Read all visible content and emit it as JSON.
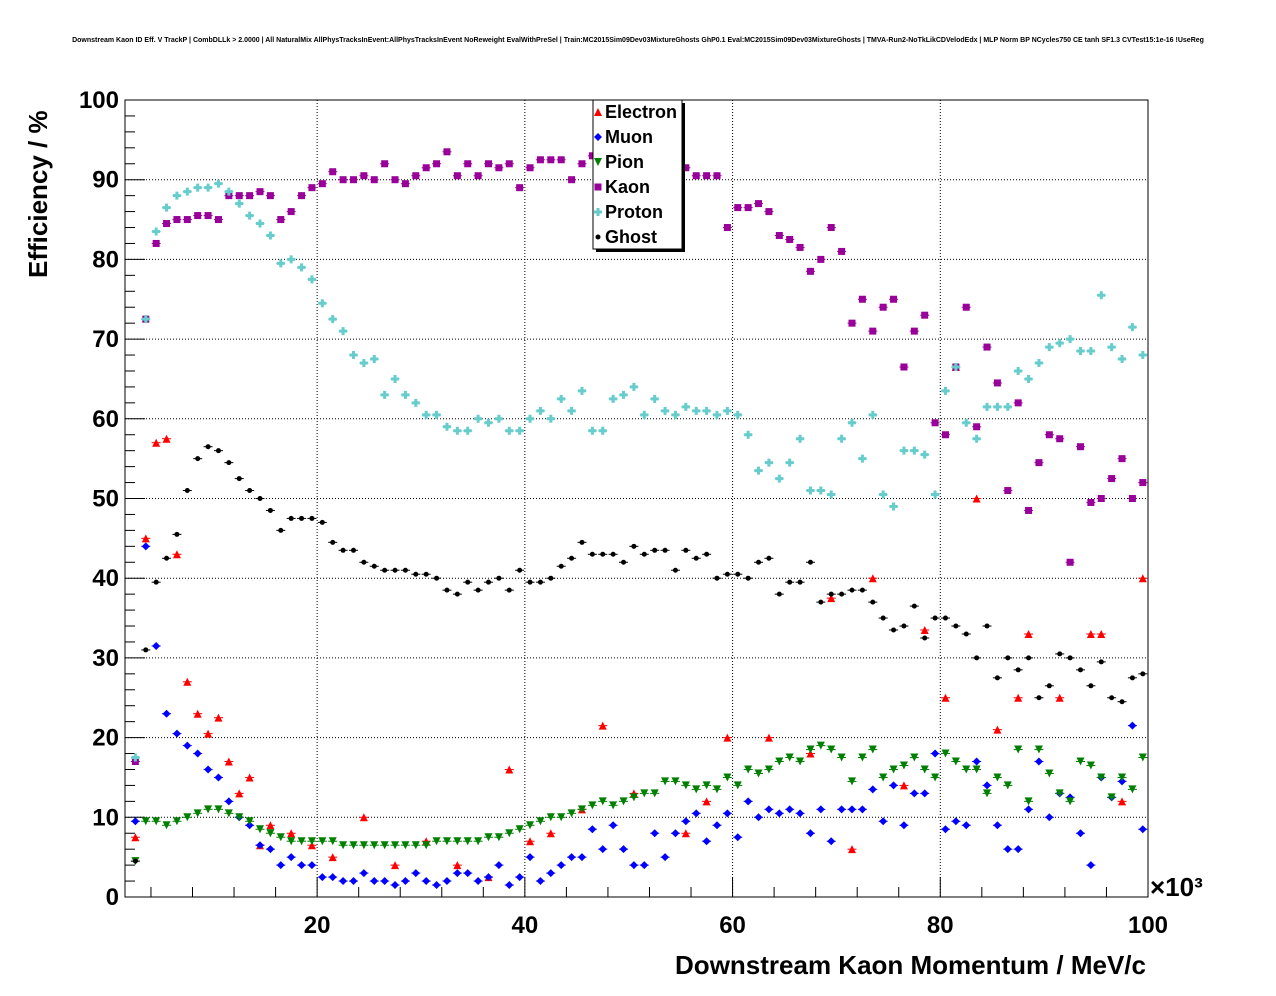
{
  "chart_data": {
    "type": "scatter",
    "title": "Downstream Kaon ID Eff. V TrackP | CombDLLk > 2.0000 | All NaturalMix AllPhysTracksInEvent:AllPhysTracksInEvent NoReweight EvalWithPreSel | Train:MC2015Sim09Dev03MixtureGhosts GhP0.1 Eval:MC2015Sim09Dev03MixtureGhosts | TMVA-Run2-NoTkLikCDVelodEdx | MLP Norm BP NCycles750 CE tanh SF1.3 CVTest15:1e-16 !UseReg",
    "xlabel": "Downstream Kaon Momentum / MeV/c",
    "ylabel": "Efficiency / %",
    "x_multiplier": "×10³",
    "xlim": [
      1.5,
      100
    ],
    "ylim": [
      0,
      100
    ],
    "xticks": [
      20,
      40,
      60,
      80,
      100
    ],
    "yticks": [
      0,
      10,
      20,
      30,
      40,
      50,
      60,
      70,
      80,
      90,
      100
    ],
    "grid": true,
    "legend_position": "top-center",
    "series": [
      {
        "name": "Electron",
        "color": "#ff0000",
        "marker": "triangle-up",
        "x": [
          2.5,
          3.5,
          4.5,
          5.5,
          6.5,
          7.5,
          8.5,
          9.5,
          10.5,
          11.5,
          12.5,
          13.5,
          14.5,
          15.5,
          17.5,
          19.5,
          21.5,
          24.5,
          27.5,
          30.5,
          33.5,
          36.5,
          38.5,
          40.5,
          42.5,
          45.5,
          47.5,
          50.5,
          55.5,
          57.5,
          59.5,
          63.5,
          67.5,
          69.5,
          71.5,
          73.5,
          76.5,
          78.5,
          80.5,
          81.5,
          83.5,
          85.5,
          87.5,
          88.5,
          91.5,
          94.5,
          95.5,
          97.5,
          99.5
        ],
        "y": [
          7.5,
          45,
          57,
          57.5,
          43,
          27,
          23,
          20.5,
          22.5,
          17,
          13,
          15,
          6.5,
          9,
          8,
          6.5,
          5,
          10,
          4,
          7,
          4,
          2.5,
          16,
          7,
          8,
          11,
          21.5,
          13,
          8,
          12,
          20,
          20,
          18,
          37.5,
          6,
          40,
          14,
          33.5,
          25,
          66.5,
          50,
          21,
          25,
          33,
          25,
          33,
          33,
          12,
          40
        ]
      },
      {
        "name": "Muon",
        "color": "#0000ff",
        "marker": "diamond",
        "x": [
          2.5,
          3.5,
          4.5,
          5.5,
          6.5,
          7.5,
          8.5,
          9.5,
          10.5,
          11.5,
          12.5,
          13.5,
          14.5,
          15.5,
          16.5,
          17.5,
          18.5,
          19.5,
          20.5,
          21.5,
          22.5,
          23.5,
          24.5,
          25.5,
          26.5,
          27.5,
          28.5,
          29.5,
          30.5,
          31.5,
          32.5,
          33.5,
          34.5,
          35.5,
          36.5,
          37.5,
          38.5,
          39.5,
          40.5,
          41.5,
          42.5,
          43.5,
          44.5,
          45.5,
          46.5,
          47.5,
          48.5,
          49.5,
          50.5,
          51.5,
          52.5,
          53.5,
          54.5,
          55.5,
          56.5,
          57.5,
          58.5,
          59.5,
          60.5,
          61.5,
          62.5,
          63.5,
          64.5,
          65.5,
          66.5,
          67.5,
          68.5,
          69.5,
          70.5,
          71.5,
          72.5,
          73.5,
          74.5,
          75.5,
          76.5,
          77.5,
          78.5,
          79.5,
          80.5,
          81.5,
          82.5,
          83.5,
          84.5,
          85.5,
          86.5,
          87.5,
          88.5,
          89.5,
          90.5,
          91.5,
          92.5,
          93.5,
          94.5,
          95.5,
          96.5,
          97.5,
          98.5,
          99.5
        ],
        "y": [
          9.5,
          44,
          31.5,
          23,
          20.5,
          19,
          18,
          16,
          15,
          12,
          10,
          9,
          6.5,
          6,
          4,
          5,
          4,
          4,
          2.5,
          2.5,
          2,
          2,
          3,
          2,
          2,
          1.5,
          2,
          3,
          2,
          1.5,
          2,
          3,
          3,
          2,
          2.5,
          4,
          1.5,
          2.5,
          5,
          2,
          3,
          4,
          5,
          5,
          8.5,
          6,
          9,
          6,
          4,
          4,
          8,
          5,
          8,
          9.5,
          10.5,
          7,
          9,
          10.5,
          7.5,
          12,
          10,
          11,
          10.5,
          11,
          10.5,
          8,
          11,
          7,
          11,
          11,
          11,
          13.5,
          9.5,
          14,
          9,
          13,
          13,
          18,
          8.5,
          9.5,
          9,
          17,
          14,
          9,
          6,
          6,
          11,
          17,
          10,
          13,
          12.5,
          8,
          4,
          15,
          12.5,
          14.5,
          21.5,
          8.5
        ]
      },
      {
        "name": "Pion",
        "color": "#008000",
        "marker": "triangle-down",
        "x": [
          2.5,
          3.5,
          4.5,
          5.5,
          6.5,
          7.5,
          8.5,
          9.5,
          10.5,
          11.5,
          12.5,
          13.5,
          14.5,
          15.5,
          16.5,
          17.5,
          18.5,
          19.5,
          20.5,
          21.5,
          22.5,
          23.5,
          24.5,
          25.5,
          26.5,
          27.5,
          28.5,
          29.5,
          30.5,
          31.5,
          32.5,
          33.5,
          34.5,
          35.5,
          36.5,
          37.5,
          38.5,
          39.5,
          40.5,
          41.5,
          42.5,
          43.5,
          44.5,
          45.5,
          46.5,
          47.5,
          48.5,
          49.5,
          50.5,
          51.5,
          52.5,
          53.5,
          54.5,
          55.5,
          56.5,
          57.5,
          58.5,
          59.5,
          60.5,
          61.5,
          62.5,
          63.5,
          64.5,
          65.5,
          66.5,
          67.5,
          68.5,
          69.5,
          70.5,
          71.5,
          72.5,
          73.5,
          74.5,
          75.5,
          76.5,
          77.5,
          78.5,
          79.5,
          80.5,
          81.5,
          82.5,
          83.5,
          84.5,
          85.5,
          86.5,
          87.5,
          88.5,
          89.5,
          90.5,
          91.5,
          92.5,
          93.5,
          94.5,
          95.5,
          96.5,
          97.5,
          98.5,
          99.5
        ],
        "y": [
          4.5,
          9.5,
          9.5,
          9,
          9.5,
          10,
          10.5,
          11,
          11,
          10.5,
          10,
          9.5,
          8.5,
          8,
          7.5,
          7,
          7,
          7,
          7,
          7,
          6.5,
          6.5,
          6.5,
          6.5,
          6.5,
          6.5,
          6.5,
          6.5,
          6.5,
          7,
          7,
          7,
          7,
          7,
          7.5,
          7.5,
          8,
          8.5,
          9,
          9.5,
          10,
          10,
          10.5,
          11,
          11.5,
          12,
          11.5,
          12,
          12.5,
          13,
          13,
          14.5,
          14.5,
          14,
          13.5,
          14,
          13.5,
          15,
          14,
          16,
          15.5,
          16,
          17,
          17.5,
          17,
          18.5,
          19,
          18.5,
          17.5,
          14.5,
          17.5,
          18.5,
          15,
          16,
          16.5,
          17.5,
          16,
          15,
          18,
          17,
          16,
          16,
          13,
          15,
          14,
          18.5,
          12,
          18.5,
          15.5,
          13,
          12,
          17,
          16.5,
          15,
          12.5,
          15,
          13.5,
          17.5
        ]
      },
      {
        "name": "Kaon",
        "color": "#990099",
        "marker": "square",
        "x": [
          2.5,
          3.5,
          4.5,
          5.5,
          6.5,
          7.5,
          8.5,
          9.5,
          10.5,
          11.5,
          12.5,
          13.5,
          14.5,
          15.5,
          16.5,
          17.5,
          18.5,
          19.5,
          20.5,
          21.5,
          22.5,
          23.5,
          24.5,
          25.5,
          26.5,
          27.5,
          28.5,
          29.5,
          30.5,
          31.5,
          32.5,
          33.5,
          34.5,
          35.5,
          36.5,
          37.5,
          38.5,
          39.5,
          40.5,
          41.5,
          42.5,
          43.5,
          44.5,
          45.5,
          46.5,
          47.5,
          48.5,
          49.5,
          50.5,
          51.5,
          52.5,
          53.5,
          54.5,
          55.5,
          56.5,
          57.5,
          58.5,
          59.5,
          60.5,
          61.5,
          62.5,
          63.5,
          64.5,
          65.5,
          66.5,
          67.5,
          68.5,
          69.5,
          70.5,
          71.5,
          72.5,
          73.5,
          74.5,
          75.5,
          76.5,
          77.5,
          78.5,
          79.5,
          80.5,
          81.5,
          82.5,
          83.5,
          84.5,
          85.5,
          86.5,
          87.5,
          88.5,
          89.5,
          90.5,
          91.5,
          92.5,
          93.5,
          94.5,
          95.5,
          96.5,
          97.5,
          98.5,
          99.5
        ],
        "y": [
          17,
          72.5,
          82,
          84.5,
          85,
          85,
          85.5,
          85.5,
          85,
          88,
          88,
          88,
          88.5,
          88,
          85,
          86,
          88,
          89,
          89.5,
          91,
          90,
          90,
          90.5,
          90,
          92,
          90,
          89.5,
          90.5,
          91.5,
          92,
          93.5,
          90.5,
          92,
          90.5,
          92,
          91.5,
          92,
          89,
          91.5,
          92.5,
          92.5,
          92.5,
          90,
          92,
          93,
          91.5,
          91.5,
          92,
          90.5,
          91,
          89.5,
          91,
          89.5,
          91.5,
          90.5,
          90.5,
          90.5,
          84,
          86.5,
          86.5,
          87,
          86,
          83,
          82.5,
          81.5,
          78.5,
          80,
          84,
          81,
          72,
          75,
          71,
          74,
          75,
          66.5,
          71,
          73,
          59.5,
          58,
          66.5,
          74,
          59,
          69,
          64.5,
          51,
          62,
          48.5,
          54.5,
          58,
          57.5,
          42,
          56.5,
          49.5,
          50,
          52.5,
          55,
          50,
          52
        ]
      },
      {
        "name": "Proton",
        "color": "#66cccc",
        "marker": "cross",
        "x": [
          2.5,
          3.5,
          4.5,
          5.5,
          6.5,
          7.5,
          8.5,
          9.5,
          10.5,
          11.5,
          12.5,
          13.5,
          14.5,
          15.5,
          16.5,
          17.5,
          18.5,
          19.5,
          20.5,
          21.5,
          22.5,
          23.5,
          24.5,
          25.5,
          26.5,
          27.5,
          28.5,
          29.5,
          30.5,
          31.5,
          32.5,
          33.5,
          34.5,
          35.5,
          36.5,
          37.5,
          38.5,
          39.5,
          40.5,
          41.5,
          42.5,
          43.5,
          44.5,
          45.5,
          46.5,
          47.5,
          48.5,
          49.5,
          50.5,
          51.5,
          52.5,
          53.5,
          54.5,
          55.5,
          56.5,
          57.5,
          58.5,
          59.5,
          60.5,
          61.5,
          62.5,
          63.5,
          64.5,
          65.5,
          66.5,
          67.5,
          68.5,
          69.5,
          70.5,
          71.5,
          72.5,
          73.5,
          74.5,
          75.5,
          76.5,
          77.5,
          78.5,
          79.5,
          80.5,
          81.5,
          82.5,
          83.5,
          84.5,
          85.5,
          86.5,
          87.5,
          88.5,
          89.5,
          90.5,
          91.5,
          92.5,
          93.5,
          94.5,
          95.5,
          96.5,
          97.5,
          98.5,
          99.5
        ],
        "y": [
          17.5,
          72.5,
          83.5,
          86.5,
          88,
          88.5,
          89,
          89,
          89.5,
          88.5,
          87,
          85.5,
          84.5,
          83,
          79.5,
          80,
          79,
          77.5,
          74.5,
          72.5,
          71,
          68,
          67,
          67.5,
          63,
          65,
          63,
          62,
          60.5,
          60.5,
          59,
          58.5,
          58.5,
          60,
          59.5,
          60,
          58.5,
          58.5,
          60,
          61,
          60,
          62.5,
          61,
          63.5,
          58.5,
          58.5,
          62.5,
          63,
          64,
          60.5,
          62.5,
          61,
          60.5,
          61.5,
          61,
          61,
          60.5,
          61,
          60.5,
          58,
          53.5,
          54.5,
          52.5,
          54.5,
          57.5,
          51,
          51,
          50.5,
          57.5,
          59.5,
          55,
          60.5,
          50.5,
          49,
          56,
          56,
          55.5,
          50.5,
          63.5,
          66.5,
          59.5,
          57.5,
          61.5,
          61.5,
          61.5,
          66,
          65,
          67,
          69,
          69.5,
          70,
          68.5,
          68.5,
          75.5,
          69,
          67.5,
          71.5,
          68
        ]
      },
      {
        "name": "Ghost",
        "color": "#000000",
        "marker": "plus",
        "x": [
          2.5,
          3.5,
          4.5,
          5.5,
          6.5,
          7.5,
          8.5,
          9.5,
          10.5,
          11.5,
          12.5,
          13.5,
          14.5,
          15.5,
          16.5,
          17.5,
          18.5,
          19.5,
          20.5,
          21.5,
          22.5,
          23.5,
          24.5,
          25.5,
          26.5,
          27.5,
          28.5,
          29.5,
          30.5,
          31.5,
          32.5,
          33.5,
          34.5,
          35.5,
          36.5,
          37.5,
          38.5,
          39.5,
          40.5,
          41.5,
          42.5,
          43.5,
          44.5,
          45.5,
          46.5,
          47.5,
          48.5,
          49.5,
          50.5,
          51.5,
          52.5,
          53.5,
          54.5,
          55.5,
          56.5,
          57.5,
          58.5,
          59.5,
          60.5,
          61.5,
          62.5,
          63.5,
          64.5,
          65.5,
          66.5,
          67.5,
          68.5,
          69.5,
          70.5,
          71.5,
          72.5,
          73.5,
          74.5,
          75.5,
          76.5,
          77.5,
          78.5,
          79.5,
          80.5,
          81.5,
          82.5,
          83.5,
          84.5,
          85.5,
          86.5,
          87.5,
          88.5,
          89.5,
          90.5,
          91.5,
          92.5,
          93.5,
          94.5,
          95.5,
          96.5,
          97.5,
          98.5,
          99.5
        ],
        "y": [
          4.5,
          31,
          39.5,
          42.5,
          45.5,
          51,
          55,
          56.5,
          56,
          54.5,
          52.5,
          51,
          50,
          48.5,
          46,
          47.5,
          47.5,
          47.5,
          47,
          44.5,
          43.5,
          43.5,
          42,
          41.5,
          41,
          41,
          41,
          40.5,
          40.5,
          40,
          38.5,
          38,
          39.5,
          38.5,
          39.5,
          40,
          38.5,
          41,
          39.5,
          39.5,
          40,
          41.5,
          42.5,
          44.5,
          43,
          43,
          43,
          42,
          44,
          43,
          43.5,
          43.5,
          41,
          43.5,
          42.5,
          43,
          40,
          40.5,
          40.5,
          40,
          42,
          42.5,
          38,
          39.5,
          39.5,
          42,
          37,
          38,
          38,
          38.5,
          38.5,
          37,
          35,
          33.5,
          34,
          36.5,
          32.5,
          35,
          35,
          34,
          33,
          30,
          34,
          27.5,
          30,
          28.5,
          30,
          25,
          26.5,
          30.5,
          30,
          28.5,
          26.5,
          29.5,
          25,
          24.5,
          27.5,
          28
        ]
      }
    ]
  }
}
